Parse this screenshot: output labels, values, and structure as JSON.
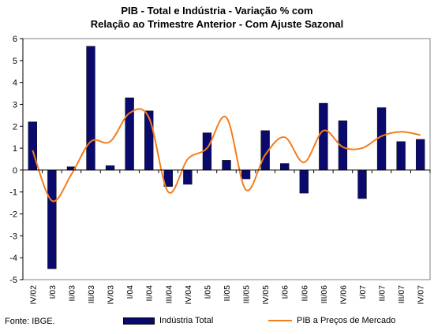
{
  "chart_data": {
    "type": "bar+line",
    "title": [
      "PIB - Total e Indústria - Variação % com",
      "Relação ao Trimestre Anterior - Com Ajuste Sazonal"
    ],
    "categories": [
      "IV/02",
      "I/03",
      "II/03",
      "III/03",
      "IV/03",
      "I/04",
      "II/04",
      "III/04",
      "IV/04",
      "I/05",
      "II/05",
      "III/05",
      "IV/05",
      "I/06",
      "II/06",
      "III/06",
      "IV/06",
      "I/07",
      "II/07",
      "III/07",
      "IV/07"
    ],
    "ylim": [
      -5,
      6
    ],
    "yticks": [
      "-5",
      "-4",
      "-3",
      "-2",
      "-1",
      "0",
      "1",
      "2",
      "3",
      "4",
      "5",
      "6"
    ],
    "grid": false,
    "legend_position": "bottom",
    "series": [
      {
        "name": "Indústria Total",
        "type": "bar",
        "color": "#0a0a6e",
        "values": [
          2.2,
          -4.5,
          0.15,
          5.65,
          0.2,
          3.3,
          2.7,
          -0.75,
          -0.65,
          1.7,
          0.45,
          -0.4,
          1.8,
          0.3,
          -1.05,
          3.05,
          2.25,
          -1.3,
          2.85,
          1.3,
          1.4
        ]
      },
      {
        "name": "PIB a Preços de Mercado",
        "type": "line",
        "color": "#f47d1c",
        "values": [
          0.9,
          -1.4,
          -0.2,
          1.3,
          1.3,
          2.6,
          2.4,
          -1.0,
          0.5,
          1.0,
          2.4,
          -0.9,
          0.7,
          1.5,
          0.35,
          1.8,
          1.05,
          1.0,
          1.55,
          1.75,
          1.6
        ]
      }
    ]
  },
  "source_note": "Fonte: IBGE.",
  "legend": {
    "bar_label": "Indústria Total",
    "line_label": "PIB a Preços de Mercado"
  }
}
